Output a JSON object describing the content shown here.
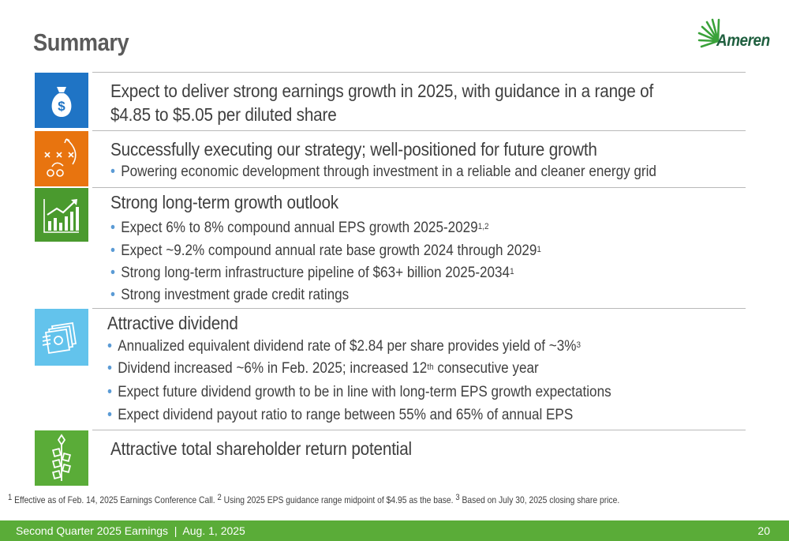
{
  "page": {
    "title": "Summary",
    "logo_text": "Ameren",
    "colors": {
      "earnings_icon": "#1f74c5",
      "strategy_icon": "#e8740f",
      "growth_icon": "#4a9a2e",
      "dividend_icon": "#63c3ec",
      "shareholder_icon": "#5aac38",
      "footer": "#5aac38",
      "logo_green": "#3aa23a"
    }
  },
  "sections": [
    {
      "icon": "money-bag-icon",
      "heading_line1": "Expect to deliver strong earnings growth in 2025, with guidance in a range of",
      "heading_line2": "$4.85 to $5.05 per diluted share"
    },
    {
      "icon": "playbook-strategy-icon",
      "heading": "Successfully executing our strategy; well-positioned for future growth",
      "bullets": [
        {
          "text": "Powering economic development through investment in a reliable and cleaner energy grid"
        }
      ]
    },
    {
      "icon": "growth-chart-icon",
      "heading": "Strong long-term growth outlook",
      "bullets": [
        {
          "text": "Expect 6% to 8% compound annual EPS growth 2025-2029",
          "sup": "1,2"
        },
        {
          "text": "Expect ~9.2% compound annual rate base growth 2024 through 2029",
          "sup": "1"
        },
        {
          "text": "Strong long-term infrastructure pipeline of $63+ billion 2025-2034",
          "sup": "1"
        },
        {
          "text": "Strong investment grade credit ratings"
        }
      ]
    },
    {
      "icon": "cash-stack-icon",
      "heading": "Attractive dividend",
      "bullets": [
        {
          "text": "Annualized equivalent dividend rate of $2.84 per share provides yield of ~3%",
          "sup": "3"
        },
        {
          "text_before": "Dividend increased ~6% in Feb. 2025; increased 12",
          "sup": "th",
          "text_after": " consecutive year"
        },
        {
          "text": "Expect future dividend growth to be in line with long-term EPS growth expectations"
        },
        {
          "text": "Expect dividend payout ratio to range between 55% and 65% of annual EPS"
        }
      ]
    },
    {
      "icon": "plant-sprout-icon",
      "heading": "Attractive total shareholder return potential"
    }
  ],
  "footnote": {
    "sup1": "1",
    "text1": " Effective as of Feb. 14, 2025 Earnings Conference Call. ",
    "sup2": "2",
    "text2": " Using 2025 EPS guidance range midpoint of $4.95 as the base. ",
    "sup3": "3",
    "text3": " Based on July 30, 2025 closing share price."
  },
  "footer": {
    "left": "Second Quarter 2025 Earnings  |  Aug. 1, 2025",
    "page_number": "20"
  }
}
